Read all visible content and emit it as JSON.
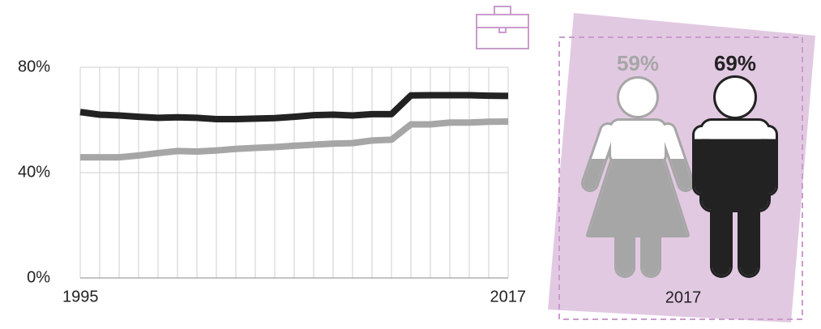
{
  "chart_data": [
    {
      "type": "line",
      "x": [
        1995,
        1996,
        1997,
        1998,
        1999,
        2000,
        2001,
        2002,
        2003,
        2004,
        2005,
        2006,
        2007,
        2008,
        2009,
        2010,
        2011,
        2012,
        2013,
        2014,
        2015,
        2016,
        2017
      ],
      "xlim": [
        1995,
        2017
      ],
      "xticks": [
        1995,
        2017
      ],
      "ylim": [
        0,
        80
      ],
      "yticks": [
        {
          "value": 0,
          "label": "0%"
        },
        {
          "value": 40,
          "label": "40%"
        },
        {
          "value": 80,
          "label": "80%"
        }
      ],
      "grid": true,
      "series": [
        {
          "color": "#222222",
          "values": [
            63,
            62,
            61.7,
            61.2,
            60.8,
            61,
            60.8,
            60.3,
            60.3,
            60.5,
            60.7,
            61.2,
            61.8,
            62,
            61.7,
            62.2,
            62.2,
            69.3,
            69.4,
            69.4,
            69.4,
            69.2,
            69.1
          ]
        },
        {
          "color": "#a6a6a6",
          "values": [
            45.8,
            45.8,
            45.8,
            46.5,
            47.4,
            48.2,
            48,
            48.4,
            49,
            49.4,
            49.7,
            50.2,
            50.6,
            51,
            51.2,
            52.2,
            52.5,
            58.3,
            58.3,
            59,
            59,
            59.3,
            59.4
          ]
        }
      ]
    },
    {
      "type": "pictogram",
      "label": "2017",
      "values": [
        59,
        69
      ],
      "value_labels": [
        "59%",
        "69%"
      ],
      "colors": [
        "#a6a6a6",
        "#222222"
      ]
    }
  ]
}
